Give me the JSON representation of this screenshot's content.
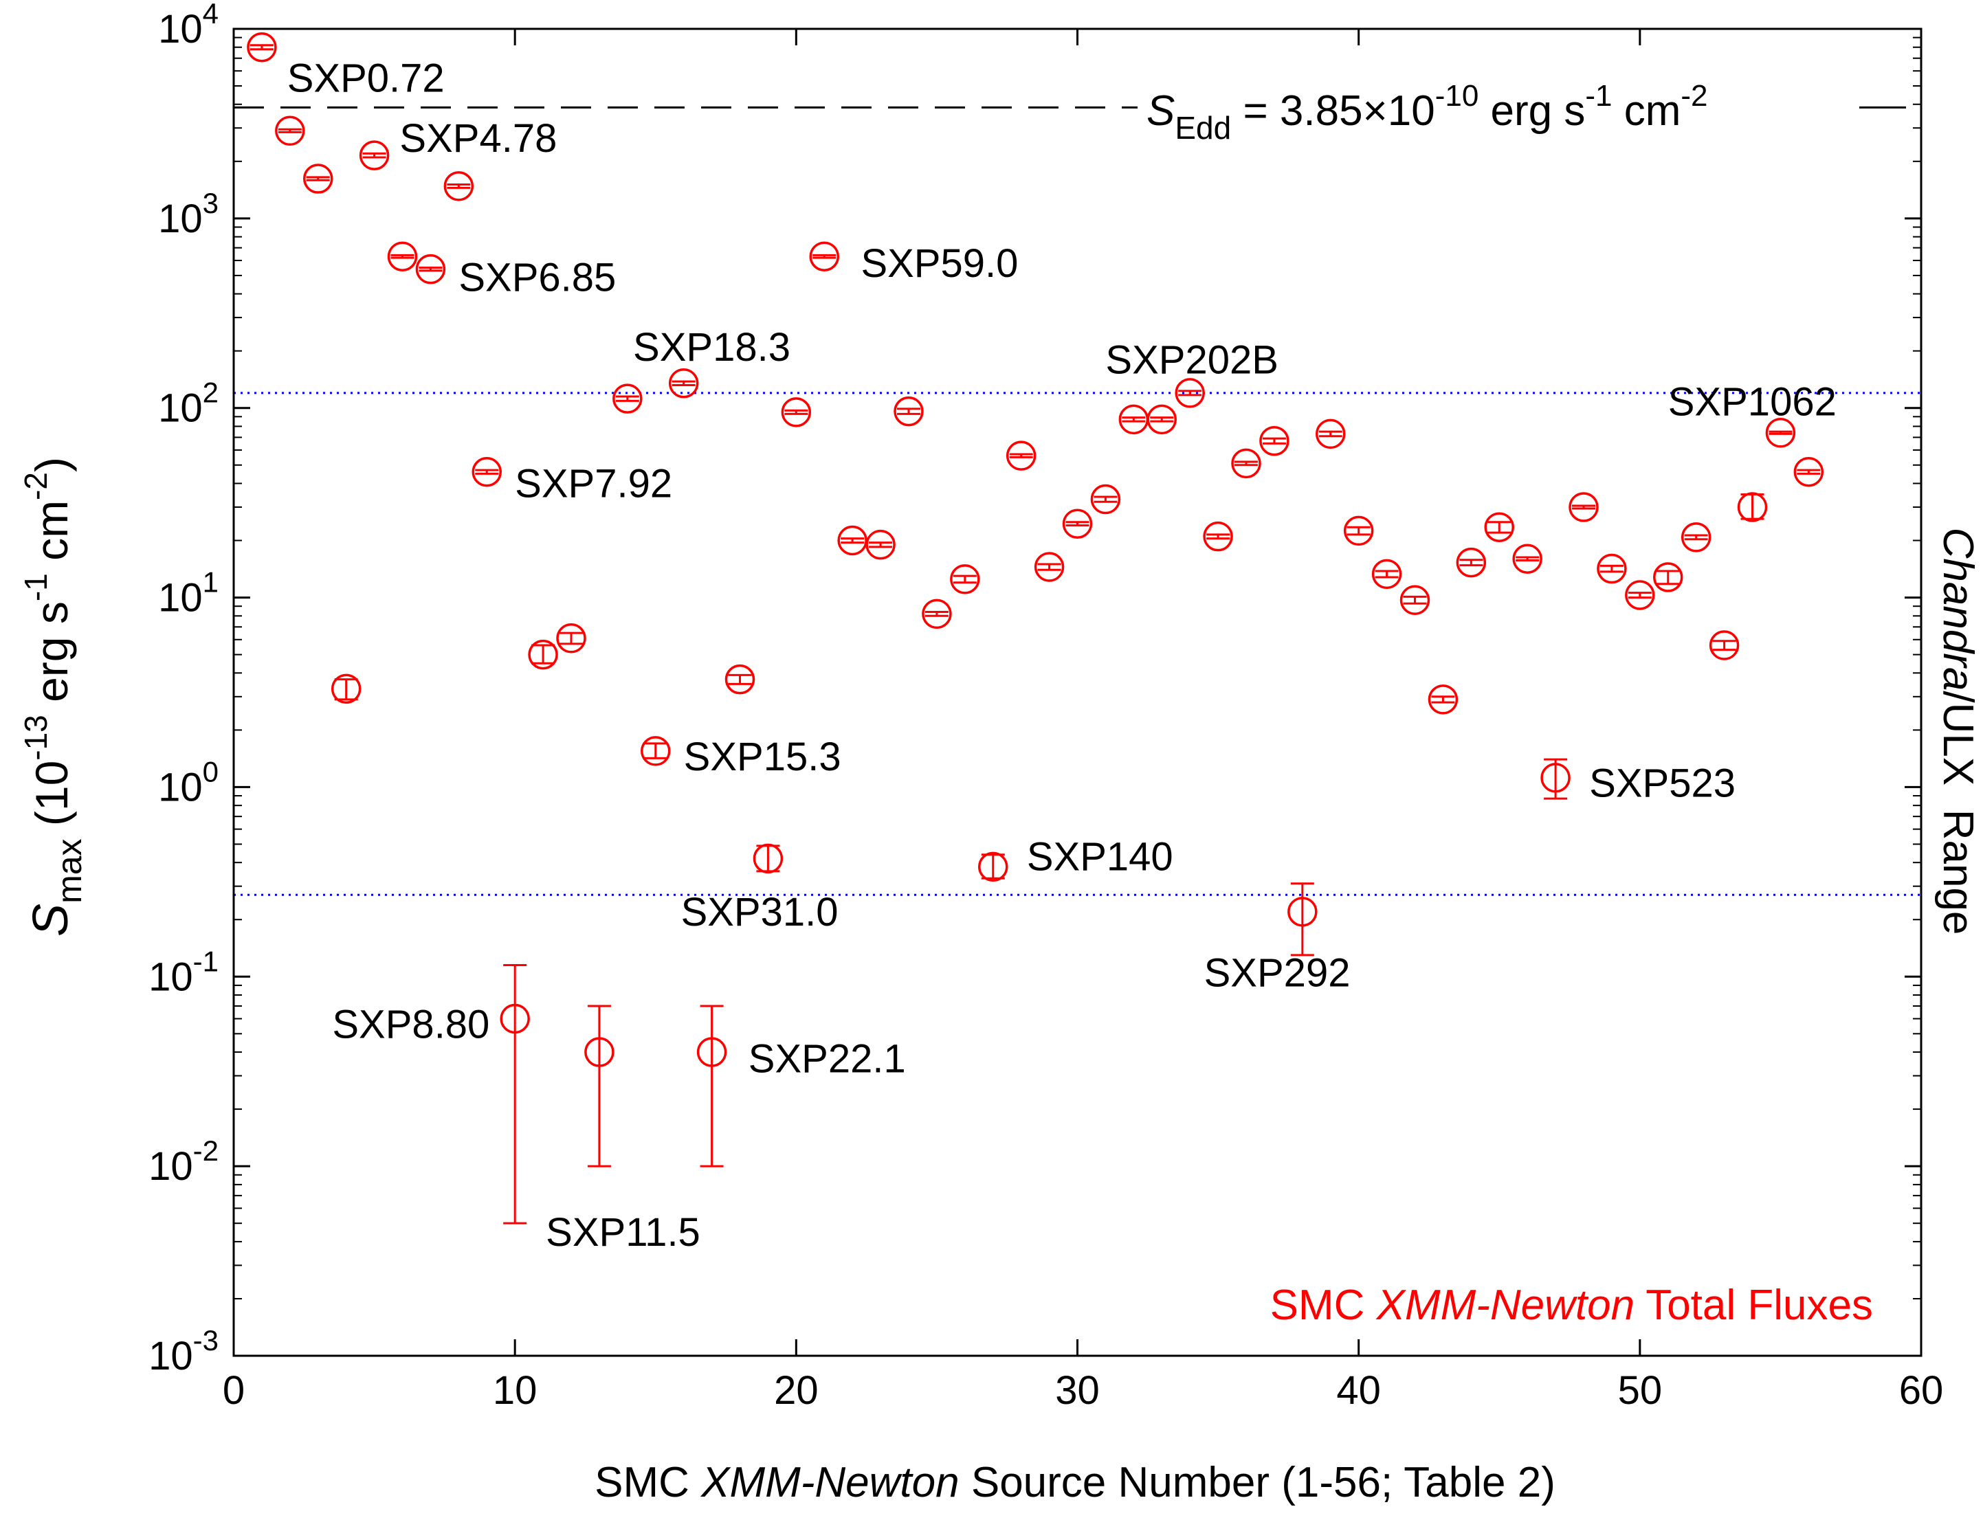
{
  "chart_data": {
    "type": "scatter",
    "title": "",
    "xlabel": {
      "pre": "SMC ",
      "italic": "XMM-Newton",
      "post": " Source Number (1-56; Table 2)"
    },
    "ylabel": {
      "s": "S",
      "sub": "max",
      "unit_pre": " (10",
      "exp": "-13",
      "unit_mid": " erg s",
      "exp2": "-1",
      "unit_mid2": " cm",
      "exp3": "-2",
      "unit_post": ")"
    },
    "right_label": {
      "italic": "Chandra",
      "rest": "/ULX  Range"
    },
    "legend_text": {
      "pre": "SMC ",
      "italic": "XMM-Newton",
      "post": " Total Fluxes"
    },
    "edd_label": {
      "s": "S",
      "sub": "Edd",
      "eq": " = 3.85",
      "times": "×",
      "ten": "10",
      "exp": "-10",
      "unit1": " erg s",
      "exp2": "-1",
      "unit2": " cm",
      "exp3": "-2"
    },
    "xlim": [
      0,
      60
    ],
    "ylim_log10": [
      -3,
      4
    ],
    "xticks": [
      0,
      10,
      20,
      30,
      40,
      50,
      60
    ],
    "xtick_labels": [
      "0",
      "10",
      "20",
      "30",
      "40",
      "50",
      "60"
    ],
    "yticks_exp": [
      4,
      3,
      2,
      1,
      0,
      -1,
      -2,
      -3
    ],
    "ytick_labels": [
      {
        "base": "10",
        "exp": "4"
      },
      {
        "base": "10",
        "exp": "3"
      },
      {
        "base": "10",
        "exp": "2"
      },
      {
        "base": "10",
        "exp": "1"
      },
      {
        "base": "10",
        "exp": "0"
      },
      {
        "base": "10",
        "exp": "-1"
      },
      {
        "base": "10",
        "exp": "-2"
      },
      {
        "base": "10",
        "exp": "-3"
      }
    ],
    "edd_line": 3850,
    "ulx_range": [
      120,
      0.27
    ],
    "colors": {
      "points": "#ff0000",
      "edd": "#000000",
      "range": "#0000ff",
      "legend": "#ff0000",
      "axes": "#000000"
    },
    "points": [
      {
        "x": 1,
        "y": 8000,
        "lo": 7800,
        "hi": 8200
      },
      {
        "x": 2,
        "y": 2900,
        "lo": 2850,
        "hi": 2950
      },
      {
        "x": 3,
        "y": 1620,
        "lo": 1590,
        "hi": 1650
      },
      {
        "x": 4,
        "y": 3.3,
        "lo": 2.9,
        "hi": 3.7
      },
      {
        "x": 5,
        "y": 2150,
        "lo": 2100,
        "hi": 2200
      },
      {
        "x": 6,
        "y": 630,
        "lo": 620,
        "hi": 640
      },
      {
        "x": 7,
        "y": 540,
        "lo": 530,
        "hi": 550
      },
      {
        "x": 8,
        "y": 1480,
        "lo": 1450,
        "hi": 1510
      },
      {
        "x": 9,
        "y": 46,
        "lo": 45,
        "hi": 47
      },
      {
        "x": 10,
        "y": 0.06,
        "lo": 0.005,
        "hi": 0.115
      },
      {
        "x": 11,
        "y": 5.0,
        "lo": 4.5,
        "hi": 5.6
      },
      {
        "x": 12,
        "y": 6.1,
        "lo": 5.7,
        "hi": 6.5
      },
      {
        "x": 13,
        "y": 0.04,
        "lo": 0.01,
        "hi": 0.07
      },
      {
        "x": 14,
        "y": 112,
        "lo": 109,
        "hi": 115
      },
      {
        "x": 15,
        "y": 1.55,
        "lo": 1.42,
        "hi": 1.7
      },
      {
        "x": 16,
        "y": 135,
        "lo": 132,
        "hi": 138
      },
      {
        "x": 17,
        "y": 0.04,
        "lo": 0.01,
        "hi": 0.07
      },
      {
        "x": 18,
        "y": 3.7,
        "lo": 3.5,
        "hi": 3.9
      },
      {
        "x": 19,
        "y": 0.42,
        "lo": 0.36,
        "hi": 0.49
      },
      {
        "x": 20,
        "y": 95,
        "lo": 93,
        "hi": 97
      },
      {
        "x": 21,
        "y": 630,
        "lo": 620,
        "hi": 640
      },
      {
        "x": 22,
        "y": 20,
        "lo": 19.5,
        "hi": 20.5
      },
      {
        "x": 23,
        "y": 19,
        "lo": 18.5,
        "hi": 19.5
      },
      {
        "x": 24,
        "y": 96,
        "lo": 93,
        "hi": 99
      },
      {
        "x": 25,
        "y": 8.2,
        "lo": 8.0,
        "hi": 8.4
      },
      {
        "x": 26,
        "y": 12.5,
        "lo": 12.0,
        "hi": 13.0
      },
      {
        "x": 27,
        "y": 0.38,
        "lo": 0.33,
        "hi": 0.44
      },
      {
        "x": 28,
        "y": 56,
        "lo": 55,
        "hi": 57
      },
      {
        "x": 29,
        "y": 14.5,
        "lo": 14.0,
        "hi": 15.0
      },
      {
        "x": 30,
        "y": 24.5,
        "lo": 24.0,
        "hi": 25.0
      },
      {
        "x": 31,
        "y": 33,
        "lo": 32,
        "hi": 34
      },
      {
        "x": 32,
        "y": 87,
        "lo": 85,
        "hi": 89
      },
      {
        "x": 33,
        "y": 87,
        "lo": 85,
        "hi": 89
      },
      {
        "x": 34,
        "y": 120,
        "lo": 117,
        "hi": 123
      },
      {
        "x": 35,
        "y": 21,
        "lo": 20.5,
        "hi": 21.5
      },
      {
        "x": 36,
        "y": 51,
        "lo": 50,
        "hi": 52
      },
      {
        "x": 37,
        "y": 67,
        "lo": 65,
        "hi": 69
      },
      {
        "x": 38,
        "y": 0.22,
        "lo": 0.13,
        "hi": 0.31
      },
      {
        "x": 39,
        "y": 73,
        "lo": 71,
        "hi": 75
      },
      {
        "x": 40,
        "y": 22.5,
        "lo": 21.5,
        "hi": 23.5
      },
      {
        "x": 41,
        "y": 13.3,
        "lo": 12.8,
        "hi": 13.8
      },
      {
        "x": 42,
        "y": 9.7,
        "lo": 9.3,
        "hi": 10.1
      },
      {
        "x": 43,
        "y": 2.9,
        "lo": 2.8,
        "hi": 3.0
      },
      {
        "x": 44,
        "y": 15.3,
        "lo": 14.8,
        "hi": 15.8
      },
      {
        "x": 45,
        "y": 23.5,
        "lo": 22.0,
        "hi": 25.0
      },
      {
        "x": 46,
        "y": 16,
        "lo": 15.7,
        "hi": 16.3
      },
      {
        "x": 47,
        "y": 1.12,
        "lo": 0.87,
        "hi": 1.4
      },
      {
        "x": 48,
        "y": 30,
        "lo": 29.5,
        "hi": 30.5
      },
      {
        "x": 49,
        "y": 14.2,
        "lo": 13.7,
        "hi": 14.7
      },
      {
        "x": 50,
        "y": 10.3,
        "lo": 10.0,
        "hi": 10.6
      },
      {
        "x": 51,
        "y": 12.8,
        "lo": 11.8,
        "hi": 13.8
      },
      {
        "x": 52,
        "y": 20.8,
        "lo": 20.3,
        "hi": 21.3
      },
      {
        "x": 53,
        "y": 5.6,
        "lo": 5.3,
        "hi": 5.9
      },
      {
        "x": 54,
        "y": 30,
        "lo": 26,
        "hi": 35
      },
      {
        "x": 55,
        "y": 74,
        "lo": 73,
        "hi": 75
      },
      {
        "x": 56,
        "y": 46,
        "lo": 45,
        "hi": 47
      }
    ],
    "annotations": [
      {
        "text": "SXP0.72",
        "x": 1.9,
        "y": 5500,
        "anchor": "start"
      },
      {
        "text": "SXP4.78",
        "x": 5.9,
        "y": 2650,
        "anchor": "start"
      },
      {
        "text": "SXP6.85",
        "x": 8.0,
        "y": 490,
        "anchor": "start"
      },
      {
        "text": "SXP59.0",
        "x": 22.3,
        "y": 580,
        "anchor": "start"
      },
      {
        "text": "SXP18.3",
        "x": 14.2,
        "y": 210,
        "anchor": "start"
      },
      {
        "text": "SXP202B",
        "x": 31.0,
        "y": 180,
        "anchor": "start"
      },
      {
        "text": "SXP1062",
        "x": 51.0,
        "y": 108,
        "anchor": "start"
      },
      {
        "text": "SXP7.92",
        "x": 10.0,
        "y": 40,
        "anchor": "start"
      },
      {
        "text": "SXP15.3",
        "x": 16.0,
        "y": 1.45,
        "anchor": "start"
      },
      {
        "text": "SXP523",
        "x": 48.2,
        "y": 1.05,
        "anchor": "start"
      },
      {
        "text": "SXP140",
        "x": 28.2,
        "y": 0.43,
        "anchor": "start"
      },
      {
        "text": "SXP31.0",
        "x": 15.9,
        "y": 0.22,
        "anchor": "start"
      },
      {
        "text": "SXP292",
        "x": 34.5,
        "y": 0.105,
        "anchor": "start"
      },
      {
        "text": "SXP8.80",
        "x": 9.1,
        "y": 0.056,
        "anchor": "end"
      },
      {
        "text": "SXP22.1",
        "x": 18.3,
        "y": 0.037,
        "anchor": "start"
      },
      {
        "text": "SXP11.5",
        "x": 11.1,
        "y": 0.0045,
        "anchor": "start"
      }
    ]
  }
}
